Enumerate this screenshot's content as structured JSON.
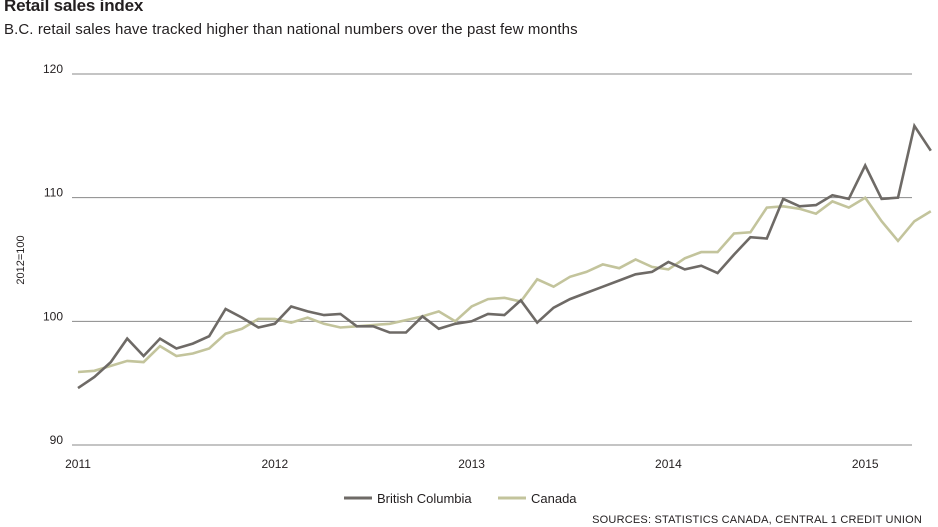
{
  "header": {
    "title": "Retail sales index",
    "subtitle": "B.C. retail sales have tracked higher than national numbers over the past few months"
  },
  "footer": {
    "source": "SOURCES: STATISTICS CANADA, CENTRAL 1 CREDIT UNION"
  },
  "colors": {
    "bc": "#6e6a66",
    "canada": "#c3c49c",
    "grid": "#8a8a8a"
  },
  "chart_data": {
    "type": "line",
    "title": "Retail sales index",
    "subtitle": "B.C. retail sales have tracked higher than national numbers over the past few months",
    "ylabel": "2012=100",
    "xlabel": "",
    "ylim": [
      90,
      120
    ],
    "yticks": [
      90,
      100,
      110,
      120
    ],
    "xtick_labels": [
      "2011",
      "2012",
      "2013",
      "2014",
      "2015"
    ],
    "x_start": "2011-01",
    "x_frequency": "monthly",
    "grid": "horizontal",
    "legend_position": "bottom-center",
    "series": [
      {
        "name": "British Columbia",
        "color": "#6e6a66",
        "values": [
          94.6,
          95.5,
          96.7,
          98.6,
          97.2,
          98.6,
          97.8,
          98.2,
          98.8,
          101.0,
          100.3,
          99.5,
          99.8,
          101.2,
          100.8,
          100.5,
          100.6,
          99.6,
          99.6,
          99.1,
          99.1,
          100.4,
          99.4,
          99.8,
          100.0,
          100.6,
          100.5,
          101.7,
          99.9,
          101.1,
          101.8,
          102.3,
          102.8,
          103.3,
          103.8,
          104.0,
          104.8,
          104.2,
          104.5,
          103.9,
          105.4,
          106.8,
          106.7,
          109.9,
          109.3,
          109.4,
          110.2,
          109.9,
          112.6,
          109.9,
          110.0,
          115.8,
          113.8
        ]
      },
      {
        "name": "Canada",
        "color": "#c3c49c",
        "values": [
          95.9,
          96.0,
          96.4,
          96.8,
          96.7,
          98.0,
          97.2,
          97.4,
          97.8,
          99.0,
          99.4,
          100.2,
          100.2,
          99.9,
          100.3,
          99.8,
          99.5,
          99.6,
          99.7,
          99.8,
          100.1,
          100.4,
          100.8,
          100.0,
          101.2,
          101.8,
          101.9,
          101.6,
          103.4,
          102.8,
          103.6,
          104.0,
          104.6,
          104.3,
          105.0,
          104.4,
          104.2,
          105.1,
          105.6,
          105.6,
          107.1,
          107.2,
          109.2,
          109.3,
          109.1,
          108.7,
          109.7,
          109.2,
          110.0,
          108.1,
          106.5,
          108.1,
          108.9
        ]
      }
    ]
  }
}
